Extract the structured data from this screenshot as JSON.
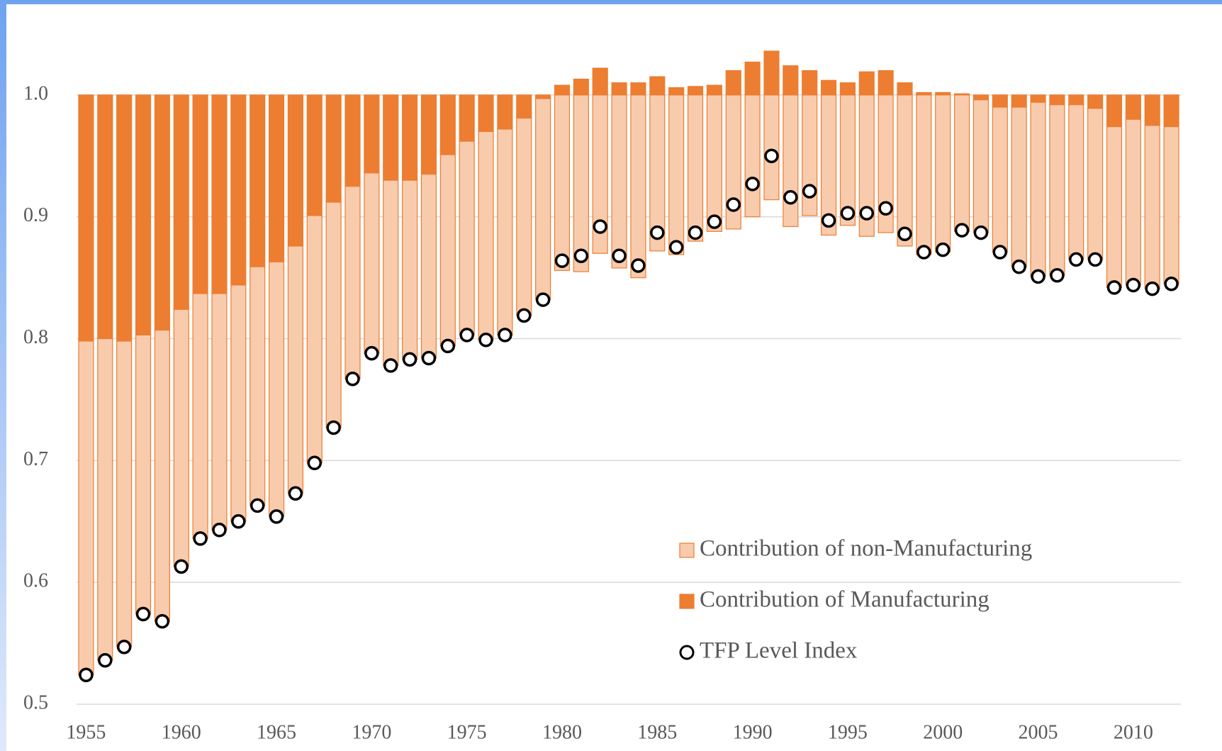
{
  "chart_data": {
    "type": "bar",
    "baseline": 1,
    "x": [
      1955,
      1956,
      1957,
      1958,
      1959,
      1960,
      1961,
      1962,
      1963,
      1964,
      1965,
      1966,
      1967,
      1968,
      1969,
      1970,
      1971,
      1972,
      1973,
      1974,
      1975,
      1976,
      1977,
      1978,
      1979,
      1980,
      1981,
      1982,
      1983,
      1984,
      1985,
      1986,
      1987,
      1988,
      1989,
      1990,
      1991,
      1992,
      1993,
      1994,
      1995,
      1996,
      1997,
      1998,
      1999,
      2000,
      2001,
      2002,
      2003,
      2004,
      2005,
      2006,
      2007,
      2008,
      2009,
      2010,
      2011,
      2012
    ],
    "series": [
      {
        "name": "Contribution of Manufacturing",
        "color": "#ED7D31",
        "values": [
          -0.202,
          -0.2,
          -0.202,
          -0.197,
          -0.193,
          -0.176,
          -0.163,
          -0.163,
          -0.156,
          -0.141,
          -0.137,
          -0.124,
          -0.099,
          -0.088,
          -0.075,
          -0.064,
          -0.07,
          -0.07,
          -0.065,
          -0.049,
          -0.038,
          -0.03,
          -0.028,
          -0.019,
          -0.003,
          0.008,
          0.013,
          0.022,
          0.01,
          0.01,
          0.015,
          0.006,
          0.007,
          0.008,
          0.02,
          0.027,
          0.036,
          0.024,
          0.02,
          0.012,
          0.01,
          0.019,
          0.02,
          0.01,
          0.002,
          0.002,
          0.001,
          -0.004,
          -0.01,
          -0.01,
          -0.006,
          -0.008,
          -0.008,
          -0.011,
          -0.026,
          -0.02,
          -0.025,
          -0.026
        ]
      },
      {
        "name": "Contribution of non-Manufacturing",
        "color": "#F8CBAD",
        "values": [
          -0.274,
          -0.264,
          -0.251,
          -0.229,
          -0.239,
          -0.211,
          -0.201,
          -0.194,
          -0.194,
          -0.196,
          -0.209,
          -0.203,
          -0.203,
          -0.185,
          -0.158,
          -0.148,
          -0.152,
          -0.147,
          -0.151,
          -0.157,
          -0.159,
          -0.171,
          -0.169,
          -0.162,
          -0.165,
          -0.144,
          -0.145,
          -0.13,
          -0.142,
          -0.15,
          -0.128,
          -0.131,
          -0.12,
          -0.112,
          -0.11,
          -0.1,
          -0.086,
          -0.108,
          -0.099,
          -0.115,
          -0.107,
          -0.116,
          -0.113,
          -0.124,
          -0.131,
          -0.129,
          -0.112,
          -0.109,
          -0.119,
          -0.131,
          -0.143,
          -0.14,
          -0.127,
          -0.124,
          -0.132,
          -0.136,
          -0.134,
          -0.129
        ]
      },
      {
        "name": "TFP Level Index",
        "type": "scatter",
        "color": "#000000",
        "values": [
          0.524,
          0.536,
          0.547,
          0.574,
          0.568,
          0.613,
          0.636,
          0.643,
          0.65,
          0.663,
          0.654,
          0.673,
          0.698,
          0.727,
          0.767,
          0.788,
          0.778,
          0.783,
          0.784,
          0.794,
          0.803,
          0.799,
          0.803,
          0.819,
          0.832,
          0.864,
          0.868,
          0.892,
          0.868,
          0.86,
          0.887,
          0.875,
          0.887,
          0.896,
          0.91,
          0.927,
          0.95,
          0.916,
          0.921,
          0.897,
          0.903,
          0.903,
          0.907,
          0.886,
          0.871,
          0.873,
          0.889,
          0.887,
          0.871,
          0.859,
          0.851,
          0.852,
          0.865,
          0.865,
          0.842,
          0.844,
          0.841,
          0.845
        ]
      }
    ],
    "xlim": [
      1954.5,
      2012.5
    ],
    "xticks": [
      1955,
      1960,
      1965,
      1970,
      1975,
      1980,
      1985,
      1990,
      1995,
      2000,
      2005,
      2010
    ],
    "ylim": [
      0.5,
      1.05
    ],
    "yticks": [
      0.5,
      0.6,
      0.7,
      0.8,
      0.9,
      {
        "value": 1,
        "label": "1.0"
      }
    ],
    "grid": true,
    "legend": "lower right"
  }
}
